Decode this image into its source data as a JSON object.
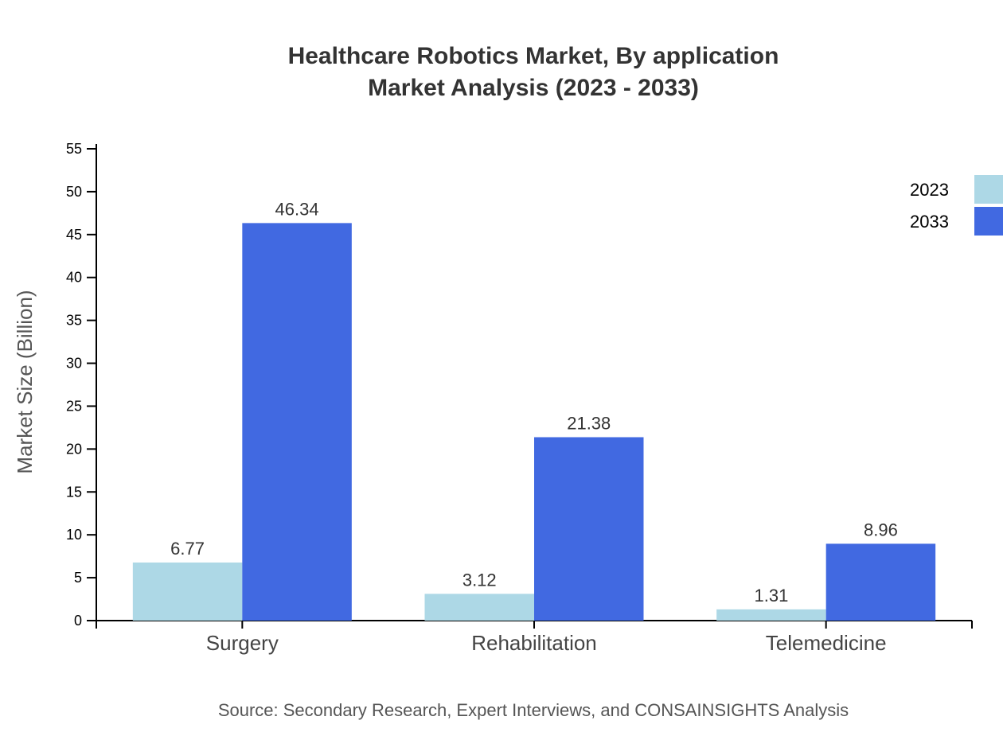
{
  "chart_data": {
    "type": "bar",
    "title": "Healthcare Robotics Market, By application",
    "subtitle": "Market Analysis (2023 - 2033)",
    "ylabel": "Market Size (Billion)",
    "xlabel": "",
    "categories": [
      "Surgery",
      "Rehabilitation",
      "Telemedicine"
    ],
    "series": [
      {
        "name": "2023",
        "color": "#add8e6",
        "values": [
          6.77,
          3.12,
          1.31
        ]
      },
      {
        "name": "2033",
        "color": "#4169e1",
        "values": [
          46.34,
          21.38,
          8.96
        ]
      }
    ],
    "ylim": [
      0,
      55
    ],
    "yticks": [
      0,
      5,
      10,
      15,
      20,
      25,
      30,
      35,
      40,
      45,
      50,
      55
    ],
    "grid": false,
    "legend": "top-right",
    "source": "Source: Secondary Research, Expert Interviews, and CONSAINSIGHTS Analysis"
  }
}
